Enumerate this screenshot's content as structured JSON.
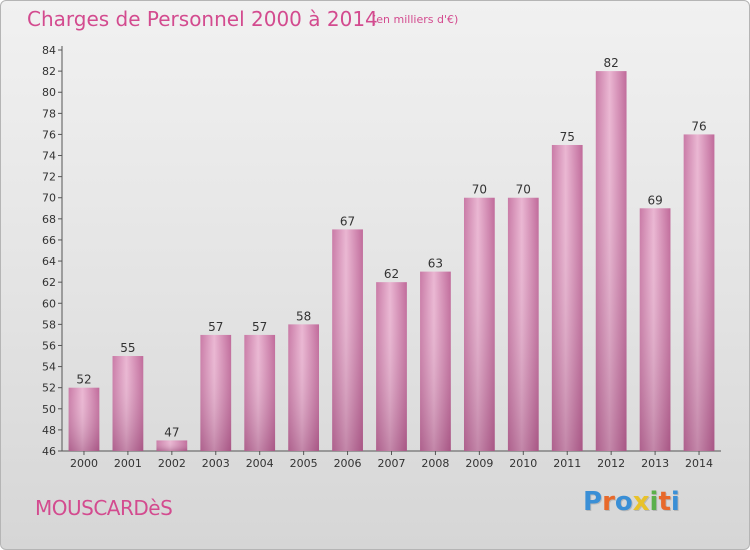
{
  "header": {
    "title": "Charges de Personnel 2000 à 2014",
    "subtitle": "(en milliers d'€)"
  },
  "footer": {
    "commune": "MOUSCARDèS",
    "logo_text": "Proxiti",
    "logo_colors": [
      "#3a8fd6",
      "#e8692a",
      "#3a8fd6",
      "#e8c22a",
      "#5bb04b",
      "#e8692a",
      "#3a8fd6"
    ]
  },
  "chart_data": {
    "type": "bar",
    "categories": [
      "2000",
      "2001",
      "2002",
      "2003",
      "2004",
      "2005",
      "2006",
      "2007",
      "2008",
      "2009",
      "2010",
      "2011",
      "2012",
      "2013",
      "2014"
    ],
    "values": [
      52,
      55,
      47,
      57,
      57,
      58,
      67,
      62,
      63,
      70,
      70,
      75,
      82,
      69,
      76
    ],
    "ylim": [
      46,
      84
    ],
    "ytick_step": 2,
    "grid": false,
    "bar_color": "#d37fae",
    "label_color": "#333333"
  }
}
